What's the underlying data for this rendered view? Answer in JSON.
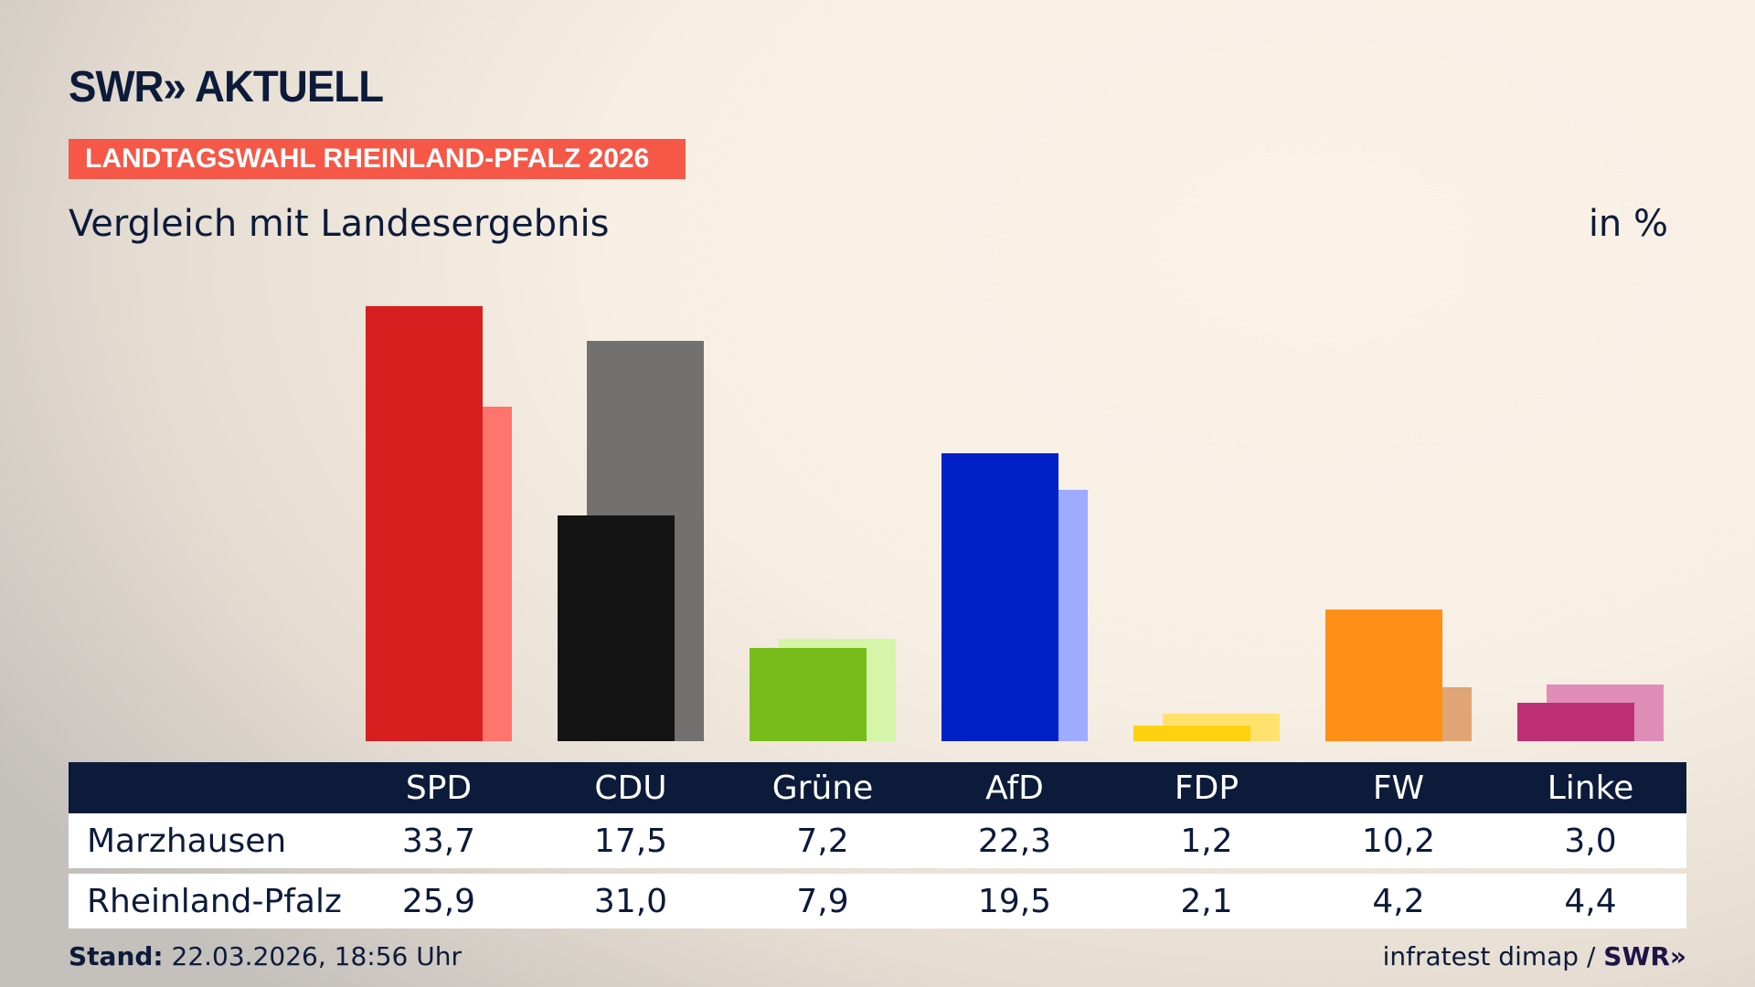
{
  "header": {
    "logo": "SWR» AKTUELL",
    "tag": "LANDTAGSWAHL RHEINLAND-PFALZ 2026",
    "subtitle": "Vergleich mit Landesergebnis",
    "unit": "in %"
  },
  "chart_data": {
    "type": "bar",
    "title": "Vergleich mit Landesergebnis",
    "ylabel": "in %",
    "categories": [
      "SPD",
      "CDU",
      "Grüne",
      "AfD",
      "FDP",
      "FW",
      "Linke"
    ],
    "series": [
      {
        "name": "Marzhausen",
        "values": [
          "33,7",
          "17,5",
          "7,2",
          "22,3",
          "1,2",
          "10,2",
          "3,0"
        ],
        "colors": [
          "#d71f1f",
          "#141414",
          "#78bc1b",
          "#0021c8",
          "#ffd10f",
          "#ff8f17",
          "#be3075"
        ]
      },
      {
        "name": "Rheinland-Pfalz",
        "values": [
          "25,9",
          "31,0",
          "7,9",
          "19,5",
          "2,1",
          "4,2",
          "4,4"
        ],
        "colors": [
          "#ff746c",
          "#72716f",
          "#d5f5a8",
          "#9eabff",
          "#ffe26e",
          "#e0a575",
          "#df8cb7"
        ]
      }
    ],
    "ylim": [
      0,
      35
    ]
  },
  "footer": {
    "stand_label": "Stand:",
    "stand_value": " 22.03.2026, 18:56 Uhr",
    "source": "infratest dimap / ",
    "source_brand": "SWR»"
  }
}
